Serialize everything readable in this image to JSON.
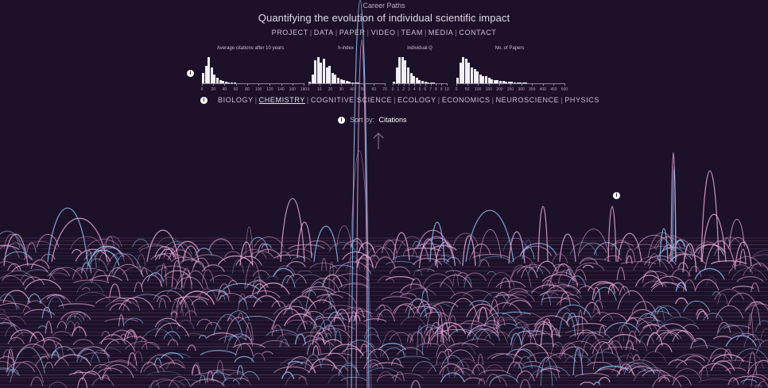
{
  "header": {
    "top_title": "Career Paths",
    "main_title": "Quantifying the evolution of individual scientific impact"
  },
  "nav": {
    "items": [
      "PROJECT",
      "DATA",
      "PAPER",
      "VIDEO",
      "TEAM",
      "MEDIA",
      "CONTACT"
    ]
  },
  "histograms": [
    {
      "title": "Average citations after 10 years",
      "ticks": [
        "0",
        "20",
        "40",
        "60",
        "80",
        "100",
        "120",
        "140",
        "160",
        "180"
      ],
      "bars": [
        6,
        10,
        15,
        9,
        5,
        3,
        2,
        1.5,
        1,
        0.6,
        0.4,
        0.3
      ]
    },
    {
      "title": "h-index",
      "ticks": [
        "0",
        "10",
        "20",
        "30",
        "40",
        "50",
        "60",
        "70"
      ],
      "bars": [
        1,
        5,
        13,
        15,
        12,
        14,
        9,
        10,
        6,
        5,
        3,
        2.5,
        2,
        1.5,
        1,
        0.6,
        0.5,
        0.3
      ]
    },
    {
      "title": "Individual Q",
      "ticks": [
        "0",
        "1",
        "2",
        "3",
        "4",
        "5",
        "6",
        "7",
        "8",
        "9",
        "10"
      ],
      "bars": [
        1,
        9,
        15,
        15,
        13,
        9,
        6,
        4,
        3,
        2,
        1.5,
        1,
        0.6,
        0.4,
        0.3,
        0.2
      ]
    },
    {
      "title": "No. of Papers",
      "ticks": [
        "0",
        "50",
        "100",
        "150",
        "200",
        "250",
        "300",
        "350",
        "400",
        "450",
        "500"
      ],
      "bars": [
        3,
        12,
        15,
        14,
        12,
        9,
        8,
        7,
        5,
        4,
        4,
        3,
        2.5,
        2,
        2,
        1.5,
        1.5,
        1,
        1,
        0.8,
        0.6,
        0.5,
        0.4,
        0.3,
        0.3
      ]
    }
  ],
  "fields": {
    "items": [
      "BIOLOGY",
      "CHEMISTRY",
      "COGNITIVE SCIENCE",
      "ECOLOGY",
      "ECONOMICS",
      "NEUROSCIENCE",
      "PHYSICS"
    ],
    "active": "CHEMISTRY"
  },
  "sort": {
    "label": "Sort by:",
    "value": "Citations"
  },
  "help_markers": [
    "i",
    "i",
    "i",
    "i"
  ],
  "colors": {
    "background": "#1c1129",
    "pink": "#e8a8d8",
    "blue": "#8fc0f0",
    "accent": "#ffffff"
  }
}
